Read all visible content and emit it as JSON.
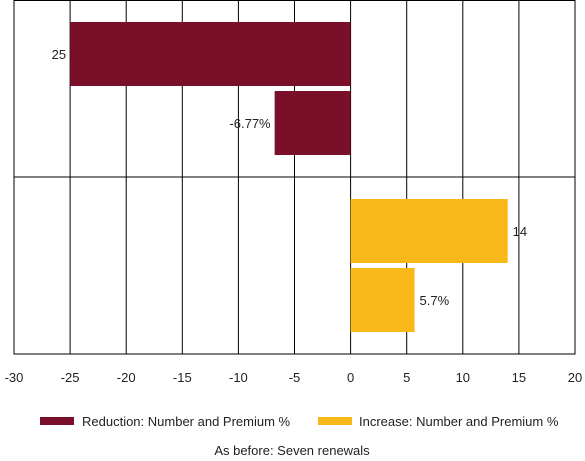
{
  "chart_data": {
    "type": "bar",
    "orientation": "horizontal",
    "title": "",
    "xlabel": "",
    "ylabel": "",
    "xlim": [
      -30,
      20
    ],
    "x_ticks": [
      -30,
      -25,
      -20,
      -15,
      -10,
      -5,
      0,
      5,
      10,
      15,
      20
    ],
    "grid": "vertical",
    "legend_position": "bottom",
    "groups": [
      {
        "name": "",
        "bars": [
          {
            "series": "reduction",
            "value": -25,
            "label": "25"
          },
          {
            "series": "reduction",
            "value": -6.77,
            "label": "-6.77%"
          }
        ]
      },
      {
        "name": "",
        "bars": [
          {
            "series": "increase",
            "value": 14,
            "label": "14"
          },
          {
            "series": "increase",
            "value": 5.7,
            "label": "5.7%"
          }
        ]
      }
    ],
    "series": [
      {
        "key": "reduction",
        "name": "Reduction: Number and Premium %",
        "color": "#7a0f2a"
      },
      {
        "key": "increase",
        "name": "Increase: Number and Premium %",
        "color": "#f8b81a"
      }
    ],
    "note": "As before: Seven renewals"
  }
}
